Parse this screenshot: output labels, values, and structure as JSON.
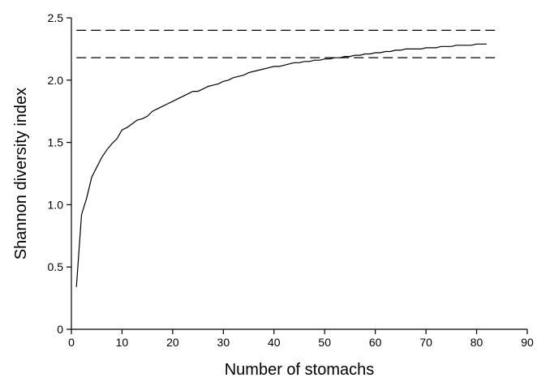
{
  "chart_data": {
    "type": "line",
    "title": "",
    "xlabel": "Number of stomachs",
    "ylabel": "Shannon diversity index",
    "xlim": [
      0,
      90
    ],
    "ylim": [
      0,
      2.5
    ],
    "xticks": [
      0,
      10,
      20,
      30,
      40,
      50,
      60,
      70,
      80,
      90
    ],
    "yticks": [
      0,
      0.5,
      1.0,
      1.5,
      2.0,
      2.5
    ],
    "xtick_labels": [
      "0",
      "10",
      "20",
      "30",
      "40",
      "50",
      "60",
      "70",
      "80",
      "90"
    ],
    "ytick_labels": [
      "0",
      "0.5",
      "1.0",
      "1.5",
      "2.0",
      "2.5"
    ],
    "grid": false,
    "series": [
      {
        "x": [
          1,
          2,
          3,
          4,
          5,
          6,
          7,
          8,
          9,
          10,
          11,
          12,
          13,
          14,
          15,
          16,
          17,
          18,
          19,
          20,
          21,
          22,
          23,
          24,
          25,
          26,
          27,
          28,
          29,
          30,
          31,
          32,
          33,
          34,
          35,
          36,
          37,
          38,
          39,
          40,
          41,
          42,
          43,
          44,
          45,
          46,
          47,
          48,
          49,
          50,
          51,
          52,
          53,
          54,
          55,
          56,
          57,
          58,
          59,
          60,
          61,
          62,
          63,
          64,
          65,
          66,
          67,
          68,
          69,
          70,
          71,
          72,
          73,
          74,
          75,
          76,
          77,
          78,
          79,
          80,
          81,
          82
        ],
        "y": [
          0.34,
          0.92,
          1.05,
          1.22,
          1.3,
          1.38,
          1.44,
          1.49,
          1.53,
          1.6,
          1.62,
          1.65,
          1.68,
          1.69,
          1.71,
          1.75,
          1.77,
          1.79,
          1.81,
          1.83,
          1.85,
          1.87,
          1.89,
          1.91,
          1.91,
          1.93,
          1.95,
          1.96,
          1.97,
          1.99,
          2.0,
          2.02,
          2.03,
          2.04,
          2.06,
          2.07,
          2.08,
          2.09,
          2.1,
          2.11,
          2.11,
          2.12,
          2.13,
          2.14,
          2.14,
          2.15,
          2.15,
          2.16,
          2.16,
          2.17,
          2.17,
          2.18,
          2.18,
          2.19,
          2.19,
          2.2,
          2.2,
          2.21,
          2.21,
          2.22,
          2.22,
          2.23,
          2.23,
          2.24,
          2.24,
          2.25,
          2.25,
          2.25,
          2.25,
          2.26,
          2.26,
          2.26,
          2.27,
          2.27,
          2.27,
          2.28,
          2.28,
          2.28,
          2.28,
          2.29,
          2.29,
          2.29
        ]
      }
    ],
    "reference_lines": [
      {
        "style": "dashed",
        "y": 2.4,
        "x_range": [
          1,
          84
        ]
      },
      {
        "style": "dashed",
        "y": 2.18,
        "x_range": [
          1,
          84
        ]
      }
    ]
  }
}
